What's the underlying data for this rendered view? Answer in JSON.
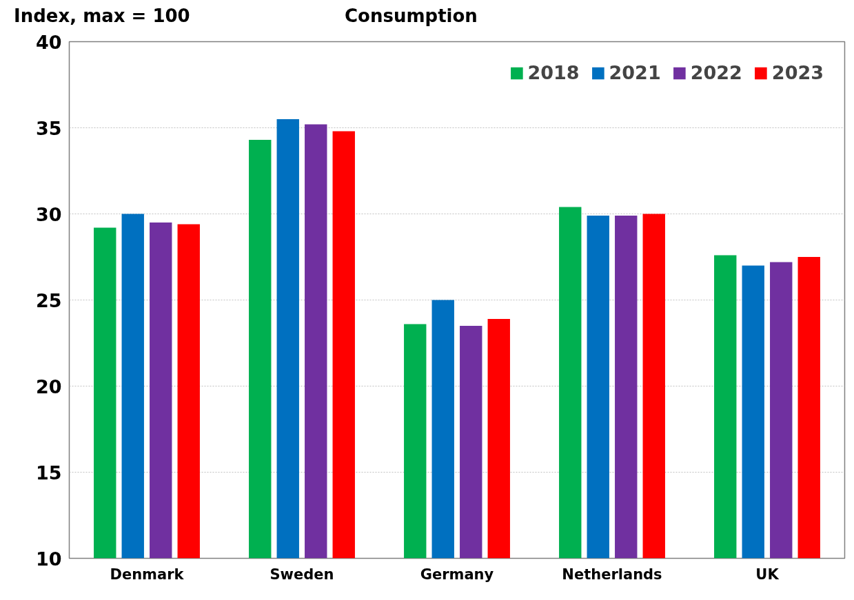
{
  "chart_data": {
    "type": "bar",
    "title": "Consumption",
    "ylabel": "Index, max = 100",
    "categories": [
      "Denmark",
      "Sweden",
      "Germany",
      "Netherlands",
      "UK"
    ],
    "series": [
      {
        "name": "2018",
        "color": "#00b050",
        "values": [
          29.2,
          34.3,
          23.6,
          30.4,
          27.6
        ]
      },
      {
        "name": "2021",
        "color": "#0070c0",
        "values": [
          30.0,
          35.5,
          25.0,
          29.9,
          27.0
        ]
      },
      {
        "name": "2022",
        "color": "#7030a0",
        "values": [
          29.5,
          35.2,
          23.5,
          29.9,
          27.2
        ]
      },
      {
        "name": "2023",
        "color": "#ff0000",
        "values": [
          29.4,
          34.8,
          23.9,
          30.0,
          27.5
        ]
      }
    ],
    "ylim": [
      10,
      40
    ],
    "yticks": [
      10,
      15,
      20,
      25,
      30,
      35,
      40
    ],
    "grid": "y",
    "legend": "top right"
  }
}
